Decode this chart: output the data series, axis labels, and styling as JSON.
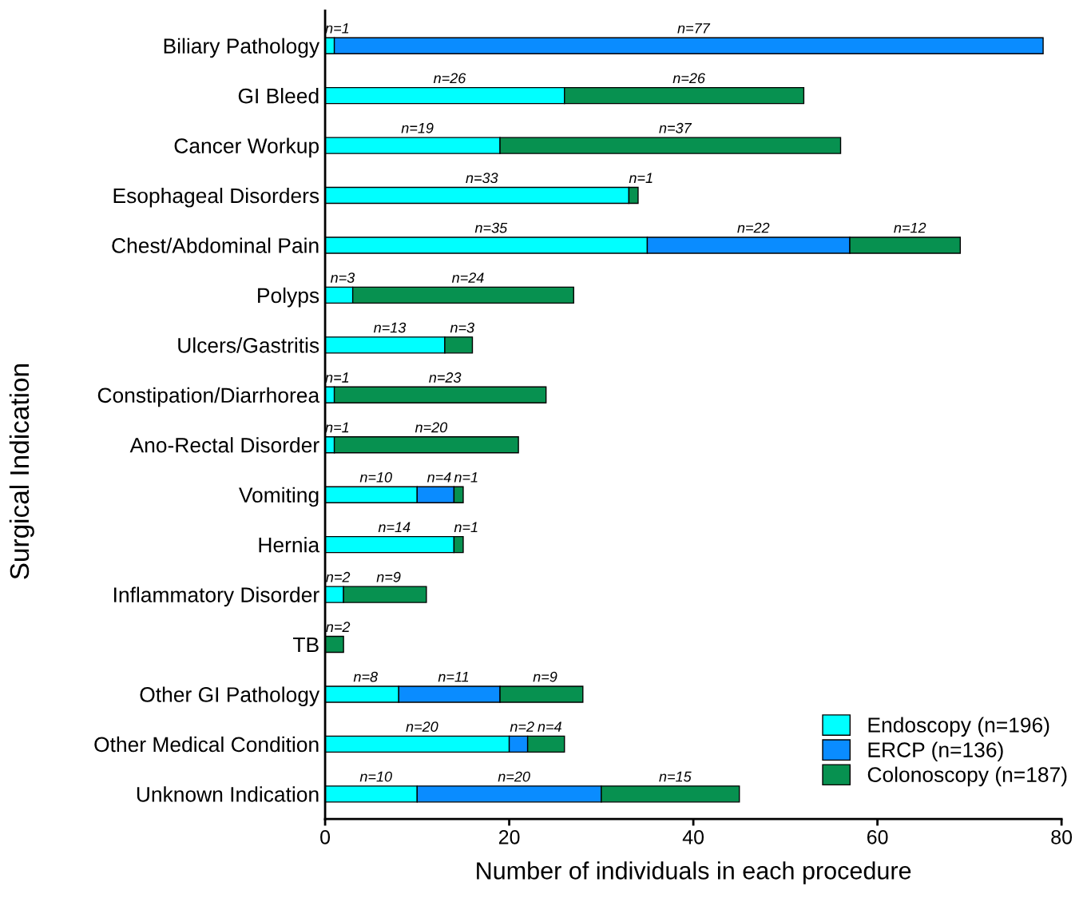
{
  "chart_data": {
    "type": "bar",
    "orientation": "horizontal",
    "stacked": true,
    "categories": [
      "Biliary Pathology",
      "GI Bleed",
      "Cancer Workup",
      "Esophageal Disorders",
      "Chest/Abdominal Pain",
      "Polyps",
      "Ulcers/Gastritis",
      "Constipation/Diarrhorea",
      "Ano-Rectal Disorder",
      "Vomiting",
      "Hernia",
      "Inflammatory Disorder",
      "TB",
      "Other GI Pathology",
      "Other Medical Condition",
      "Unknown Indication"
    ],
    "series": [
      {
        "name": "Endoscopy (n=196)",
        "color": "#00ffff",
        "values": [
          1,
          26,
          19,
          33,
          35,
          3,
          13,
          1,
          1,
          10,
          14,
          2,
          0,
          8,
          20,
          10
        ],
        "value_labels": [
          "n=1",
          "n=26",
          "n=19",
          "n=33",
          "n=35",
          "n=3",
          "n=13",
          "n=1",
          "n=1",
          "n=10",
          "n=14",
          "n=2",
          null,
          "n=8",
          "n=20",
          "n=10"
        ]
      },
      {
        "name": "ERCP (n=136)",
        "color": "#0a8cff",
        "values": [
          77,
          0,
          0,
          0,
          22,
          0,
          0,
          0,
          0,
          4,
          0,
          0,
          0,
          11,
          2,
          20
        ],
        "value_labels": [
          "n=77",
          null,
          null,
          null,
          "n=22",
          null,
          null,
          null,
          null,
          "n=4",
          null,
          null,
          null,
          "n=11",
          "n=2",
          "n=20"
        ]
      },
      {
        "name": "Colonoscopy (n=187)",
        "color": "#079150",
        "values": [
          0,
          26,
          37,
          1,
          12,
          24,
          3,
          23,
          20,
          1,
          1,
          9,
          2,
          9,
          4,
          15
        ],
        "value_labels": [
          null,
          "n=26",
          "n=37",
          "n=1",
          "n=12",
          "n=24",
          "n=3",
          "n=23",
          "n=20",
          "n=1",
          "n=1",
          "n=9",
          "n=2",
          "n=9",
          "n=4",
          "n=15"
        ]
      }
    ],
    "xlabel": "Number of individuals in each procedure",
    "ylabel": "Surgical Indication",
    "xlim": [
      0,
      80
    ],
    "xticks": [
      0,
      20,
      40,
      60,
      80
    ],
    "legend": "bottom right",
    "grid": false
  }
}
